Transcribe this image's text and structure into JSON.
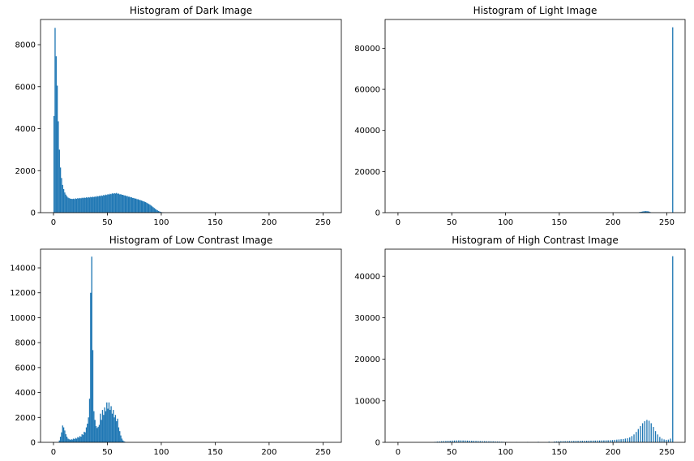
{
  "colors": {
    "bar": "#1f77b4",
    "axis": "#000000",
    "background": "#ffffff"
  },
  "chart_data": [
    {
      "type": "bar",
      "title": "Histogram of Dark Image",
      "xlabel": "",
      "ylabel": "",
      "xlim": [
        -12,
        267
      ],
      "ylim": [
        0,
        9200
      ],
      "xticks": [
        0,
        50,
        100,
        150,
        200,
        250
      ],
      "yticks": [
        0,
        2000,
        4000,
        6000,
        8000
      ],
      "grid": false,
      "bins": [
        [
          0,
          4600
        ],
        [
          1,
          8800
        ],
        [
          2,
          7450
        ],
        [
          3,
          6050
        ],
        [
          4,
          4350
        ],
        [
          5,
          3000
        ],
        [
          6,
          2150
        ],
        [
          7,
          1650
        ],
        [
          8,
          1320
        ],
        [
          9,
          1120
        ],
        [
          10,
          960
        ],
        [
          11,
          860
        ],
        [
          12,
          780
        ],
        [
          13,
          720
        ],
        [
          14,
          690
        ],
        [
          15,
          670
        ],
        [
          16,
          660
        ],
        [
          17,
          650
        ],
        [
          18,
          665
        ],
        [
          19,
          645
        ],
        [
          20,
          680
        ],
        [
          21,
          660
        ],
        [
          22,
          690
        ],
        [
          23,
          670
        ],
        [
          24,
          700
        ],
        [
          25,
          680
        ],
        [
          26,
          710
        ],
        [
          27,
          690
        ],
        [
          28,
          720
        ],
        [
          29,
          700
        ],
        [
          30,
          730
        ],
        [
          31,
          710
        ],
        [
          32,
          740
        ],
        [
          33,
          720
        ],
        [
          34,
          750
        ],
        [
          35,
          730
        ],
        [
          36,
          760
        ],
        [
          37,
          740
        ],
        [
          38,
          770
        ],
        [
          39,
          750
        ],
        [
          40,
          790
        ],
        [
          41,
          770
        ],
        [
          42,
          800
        ],
        [
          43,
          790
        ],
        [
          44,
          820
        ],
        [
          45,
          800
        ],
        [
          46,
          840
        ],
        [
          47,
          820
        ],
        [
          48,
          860
        ],
        [
          49,
          840
        ],
        [
          50,
          880
        ],
        [
          51,
          860
        ],
        [
          52,
          900
        ],
        [
          53,
          880
        ],
        [
          54,
          920
        ],
        [
          55,
          900
        ],
        [
          56,
          930
        ],
        [
          57,
          910
        ],
        [
          58,
          940
        ],
        [
          59,
          900
        ],
        [
          60,
          910
        ],
        [
          61,
          870
        ],
        [
          62,
          880
        ],
        [
          63,
          850
        ],
        [
          64,
          850
        ],
        [
          65,
          820
        ],
        [
          66,
          820
        ],
        [
          67,
          790
        ],
        [
          68,
          790
        ],
        [
          69,
          760
        ],
        [
          70,
          760
        ],
        [
          71,
          730
        ],
        [
          72,
          730
        ],
        [
          73,
          700
        ],
        [
          74,
          700
        ],
        [
          75,
          670
        ],
        [
          76,
          670
        ],
        [
          77,
          640
        ],
        [
          78,
          640
        ],
        [
          79,
          610
        ],
        [
          80,
          600
        ],
        [
          81,
          580
        ],
        [
          82,
          560
        ],
        [
          83,
          540
        ],
        [
          84,
          520
        ],
        [
          85,
          500
        ],
        [
          86,
          470
        ],
        [
          87,
          440
        ],
        [
          88,
          410
        ],
        [
          89,
          380
        ],
        [
          90,
          340
        ],
        [
          91,
          300
        ],
        [
          92,
          260
        ],
        [
          93,
          220
        ],
        [
          94,
          180
        ],
        [
          95,
          140
        ],
        [
          96,
          110
        ],
        [
          97,
          80
        ],
        [
          98,
          55
        ],
        [
          99,
          35
        ],
        [
          100,
          20
        ],
        [
          101,
          10
        ],
        [
          102,
          5
        ]
      ]
    },
    {
      "type": "bar",
      "title": "Histogram of Light Image",
      "xlabel": "",
      "ylabel": "",
      "xlim": [
        -12,
        267
      ],
      "ylim": [
        0,
        94000
      ],
      "xticks": [
        0,
        50,
        100,
        150,
        200,
        250
      ],
      "yticks": [
        0,
        20000,
        40000,
        60000,
        80000
      ],
      "grid": false,
      "bins": [
        [
          224,
          250
        ],
        [
          225,
          350
        ],
        [
          226,
          450
        ],
        [
          227,
          550
        ],
        [
          228,
          650
        ],
        [
          229,
          700
        ],
        [
          230,
          750
        ],
        [
          231,
          700
        ],
        [
          232,
          650
        ],
        [
          233,
          550
        ],
        [
          234,
          300
        ],
        [
          255,
          90200
        ]
      ]
    },
    {
      "type": "bar",
      "title": "Histogram of Low Contrast Image",
      "xlabel": "",
      "ylabel": "",
      "xlim": [
        -12,
        267
      ],
      "ylim": [
        0,
        15500
      ],
      "xticks": [
        0,
        50,
        100,
        150,
        200,
        250
      ],
      "yticks": [
        0,
        2000,
        4000,
        6000,
        8000,
        10000,
        12000,
        14000
      ],
      "grid": false,
      "bins": [
        [
          5,
          150
        ],
        [
          6,
          450
        ],
        [
          7,
          800
        ],
        [
          8,
          1350
        ],
        [
          9,
          1200
        ],
        [
          10,
          950
        ],
        [
          11,
          650
        ],
        [
          12,
          450
        ],
        [
          13,
          300
        ],
        [
          14,
          250
        ],
        [
          15,
          200
        ],
        [
          16,
          250
        ],
        [
          17,
          220
        ],
        [
          18,
          300
        ],
        [
          19,
          260
        ],
        [
          20,
          350
        ],
        [
          21,
          300
        ],
        [
          22,
          420
        ],
        [
          23,
          380
        ],
        [
          24,
          500
        ],
        [
          25,
          450
        ],
        [
          26,
          650
        ],
        [
          27,
          600
        ],
        [
          28,
          850
        ],
        [
          29,
          800
        ],
        [
          30,
          1200
        ],
        [
          31,
          1500
        ],
        [
          32,
          2000
        ],
        [
          33,
          3500
        ],
        [
          34,
          12000
        ],
        [
          35,
          14900
        ],
        [
          36,
          7400
        ],
        [
          37,
          2500
        ],
        [
          38,
          1800
        ],
        [
          39,
          1300
        ],
        [
          40,
          1150
        ],
        [
          41,
          1250
        ],
        [
          42,
          1400
        ],
        [
          43,
          2300
        ],
        [
          44,
          1800
        ],
        [
          45,
          2600
        ],
        [
          46,
          2200
        ],
        [
          47,
          2800
        ],
        [
          48,
          2500
        ],
        [
          49,
          3200
        ],
        [
          50,
          2700
        ],
        [
          51,
          3200
        ],
        [
          52,
          2600
        ],
        [
          53,
          2900
        ],
        [
          54,
          2300
        ],
        [
          55,
          2600
        ],
        [
          56,
          2000
        ],
        [
          57,
          2200
        ],
        [
          58,
          1700
        ],
        [
          59,
          1900
        ],
        [
          60,
          1200
        ],
        [
          61,
          900
        ],
        [
          62,
          550
        ],
        [
          63,
          300
        ],
        [
          64,
          150
        ],
        [
          65,
          80
        ],
        [
          66,
          40
        ]
      ]
    },
    {
      "type": "bar",
      "title": "Histogram of High Contrast Image",
      "xlabel": "",
      "ylabel": "",
      "xlim": [
        -12,
        267
      ],
      "ylim": [
        0,
        46500
      ],
      "xticks": [
        0,
        50,
        100,
        150,
        200,
        250
      ],
      "yticks": [
        0,
        10000,
        20000,
        30000,
        40000
      ],
      "grid": false,
      "bins": [
        [
          34,
          120
        ],
        [
          36,
          180
        ],
        [
          38,
          220
        ],
        [
          40,
          260
        ],
        [
          42,
          300
        ],
        [
          44,
          320
        ],
        [
          46,
          360
        ],
        [
          48,
          380
        ],
        [
          50,
          420
        ],
        [
          52,
          440
        ],
        [
          54,
          460
        ],
        [
          56,
          480
        ],
        [
          58,
          460
        ],
        [
          60,
          450
        ],
        [
          62,
          440
        ],
        [
          64,
          420
        ],
        [
          66,
          400
        ],
        [
          68,
          380
        ],
        [
          70,
          360
        ],
        [
          72,
          340
        ],
        [
          74,
          320
        ],
        [
          76,
          300
        ],
        [
          78,
          290
        ],
        [
          80,
          280
        ],
        [
          82,
          270
        ],
        [
          84,
          260
        ],
        [
          86,
          250
        ],
        [
          88,
          240
        ],
        [
          90,
          220
        ],
        [
          92,
          200
        ],
        [
          94,
          180
        ],
        [
          96,
          150
        ],
        [
          98,
          120
        ],
        [
          100,
          90
        ],
        [
          110,
          70
        ],
        [
          120,
          90
        ],
        [
          130,
          120
        ],
        [
          140,
          160
        ],
        [
          145,
          200
        ],
        [
          147,
          230
        ],
        [
          149,
          250
        ],
        [
          151,
          270
        ],
        [
          153,
          280
        ],
        [
          155,
          290
        ],
        [
          157,
          300
        ],
        [
          159,
          310
        ],
        [
          161,
          320
        ],
        [
          163,
          330
        ],
        [
          165,
          340
        ],
        [
          167,
          350
        ],
        [
          169,
          360
        ],
        [
          171,
          370
        ],
        [
          173,
          380
        ],
        [
          175,
          390
        ],
        [
          177,
          400
        ],
        [
          179,
          410
        ],
        [
          181,
          420
        ],
        [
          183,
          430
        ],
        [
          185,
          440
        ],
        [
          187,
          450
        ],
        [
          189,
          460
        ],
        [
          191,
          470
        ],
        [
          193,
          480
        ],
        [
          195,
          500
        ],
        [
          197,
          520
        ],
        [
          199,
          550
        ],
        [
          201,
          600
        ],
        [
          203,
          650
        ],
        [
          205,
          700
        ],
        [
          207,
          750
        ],
        [
          209,
          800
        ],
        [
          211,
          900
        ],
        [
          213,
          1000
        ],
        [
          215,
          1200
        ],
        [
          217,
          1500
        ],
        [
          219,
          1900
        ],
        [
          221,
          2500
        ],
        [
          223,
          3200
        ],
        [
          225,
          3900
        ],
        [
          227,
          4600
        ],
        [
          229,
          5100
        ],
        [
          231,
          5400
        ],
        [
          233,
          5200
        ],
        [
          235,
          4600
        ],
        [
          237,
          3700
        ],
        [
          239,
          2700
        ],
        [
          241,
          1900
        ],
        [
          243,
          1300
        ],
        [
          245,
          900
        ],
        [
          247,
          700
        ],
        [
          249,
          600
        ],
        [
          251,
          650
        ],
        [
          253,
          900
        ],
        [
          255,
          44800
        ]
      ]
    }
  ]
}
